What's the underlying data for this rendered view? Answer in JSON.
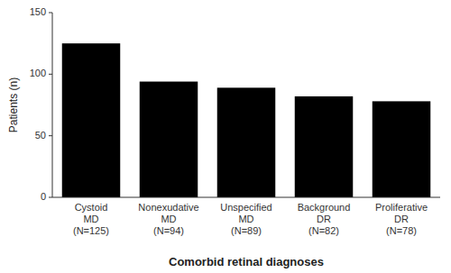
{
  "chart_data": {
    "type": "bar",
    "categories": [
      "Cystoid\nMD\n(N=125)",
      "Nonexudative\nMD\n(N=94)",
      "Unspecified\nMD\n(N=89)",
      "Background\nDR\n(N=82)",
      "Proliferative\nDR\n(N=78)"
    ],
    "values": [
      125,
      94,
      89,
      82,
      78
    ],
    "color": "#000000",
    "xlabel": "Comorbid retinal diagnoses",
    "ylabel": "Patients (n)",
    "ylim": [
      0,
      150
    ],
    "yticks": [
      0,
      50,
      100,
      150
    ]
  }
}
